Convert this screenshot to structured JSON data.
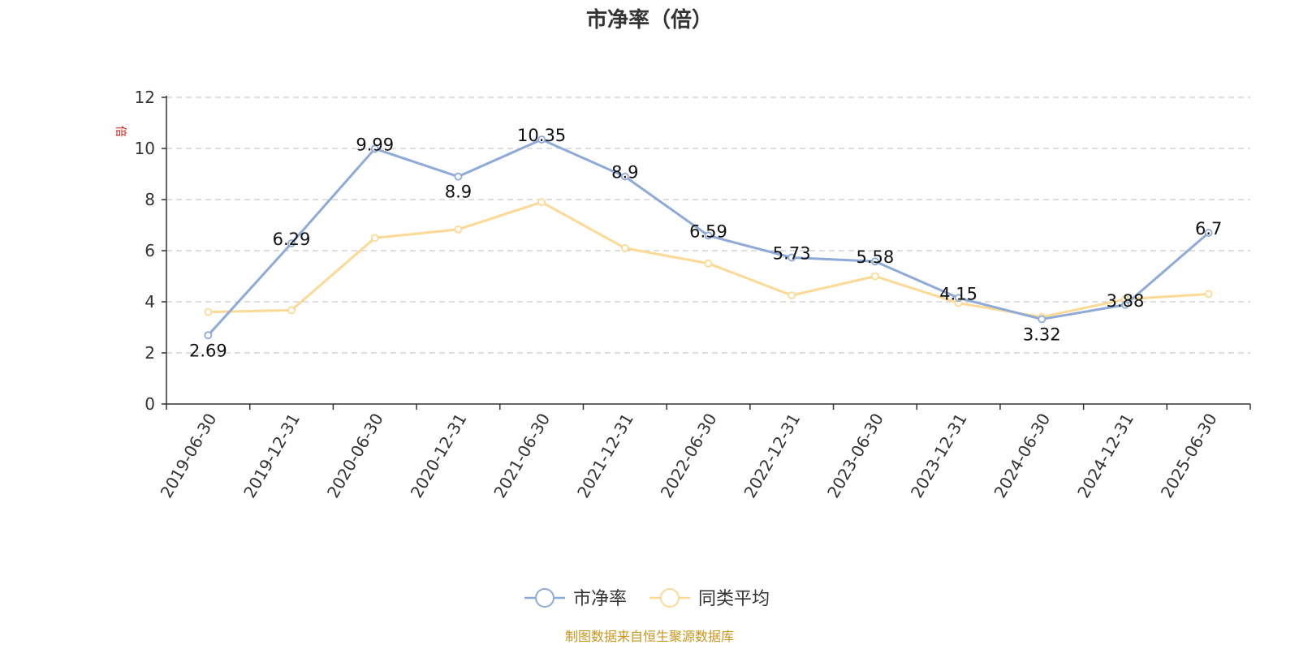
{
  "chart_data": {
    "type": "line",
    "title": "市净率（倍）",
    "y_unit": "倍",
    "categories": [
      "2019-06-30",
      "2019-12-31",
      "2020-06-30",
      "2020-12-31",
      "2021-06-30",
      "2021-12-31",
      "2022-06-30",
      "2022-12-31",
      "2023-06-30",
      "2023-12-31",
      "2024-06-30",
      "2024-12-31",
      "2025-06-30"
    ],
    "ylim": [
      0,
      12
    ],
    "yticks": [
      0,
      2,
      4,
      6,
      8,
      10,
      12
    ],
    "grid": true,
    "legend_position": "bottom-center",
    "series": [
      {
        "name": "市净率",
        "color": "#8eaad8",
        "values": [
          2.69,
          6.29,
          9.99,
          8.9,
          10.35,
          8.9,
          6.59,
          5.73,
          5.58,
          4.15,
          3.32,
          3.88,
          6.7
        ],
        "labels": [
          "2.69",
          "6.29",
          "9.99",
          "8.9",
          "10.35",
          "8.9",
          "6.59",
          "5.73",
          "5.58",
          "4.15",
          "3.32",
          "3.88",
          "6.7"
        ]
      },
      {
        "name": "同类平均",
        "color": "#fcd995",
        "values": [
          3.6,
          3.67,
          6.5,
          6.83,
          7.9,
          6.1,
          5.5,
          4.25,
          5.0,
          3.95,
          3.4,
          4.1,
          4.3
        ]
      }
    ],
    "source": "制图数据来自恒生聚源数据库"
  }
}
